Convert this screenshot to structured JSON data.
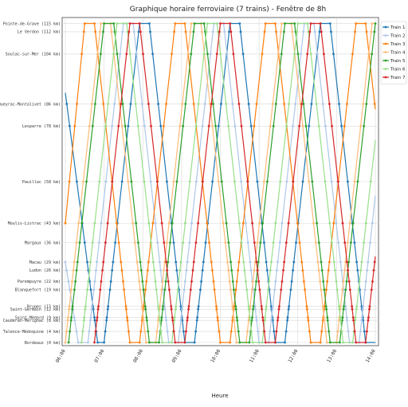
{
  "chart_data": {
    "type": "line",
    "title": "Graphique horaire ferroviaire (7 trains) - Fenêtre de 8h",
    "xlabel": "Heure",
    "ylabel": "",
    "grid": true,
    "legend_position": "top-right",
    "x_ticks": [
      "06:00",
      "07:00",
      "08:00",
      "09:00",
      "10:00",
      "11:00",
      "12:00",
      "13:00",
      "14:00"
    ],
    "ylim": [
      0,
      116
    ],
    "stations": [
      {
        "name": "Bordeaux (0 km)",
        "km": 0
      },
      {
        "name": "Talence-Médoquine (4 km)",
        "km": 4
      },
      {
        "name": "Caudéran-Mérignac (8 km)",
        "km": 8
      },
      {
        "name": "Saint-Médard (9 km)",
        "km": 9
      },
      {
        "name": "Saint-Germain (12 km)",
        "km": 12
      },
      {
        "name": "Bruges (13 km)",
        "km": 13
      },
      {
        "name": "Blanquefort (19 km)",
        "km": 19
      },
      {
        "name": "Parempuyre (22 km)",
        "km": 22
      },
      {
        "name": "Ludon (26 km)",
        "km": 26
      },
      {
        "name": "Macau (29 km)",
        "km": 29
      },
      {
        "name": "Margaux (36 km)",
        "km": 36
      },
      {
        "name": "Moulis-Listrac (43 km)",
        "km": 43
      },
      {
        "name": "Pauillac (58 km)",
        "km": 58
      },
      {
        "name": "Lesparre (78 km)",
        "km": 78
      },
      {
        "name": "Queyrac-Montalivet (86 km)",
        "km": 86
      },
      {
        "name": "Soulac-sur-Mer (104 km)",
        "km": 104
      },
      {
        "name": "Le Verdon (112 km)",
        "km": 112
      },
      {
        "name": "Pointe-de-Grave (115 km)",
        "km": 115
      }
    ],
    "series": [
      {
        "name": "Train 1",
        "color": "#1f77b4",
        "points": [
          [
            "06:00",
            90
          ],
          [
            "06:50",
            0
          ],
          [
            "07:00",
            0
          ],
          [
            "07:55",
            115
          ],
          [
            "08:10",
            115
          ],
          [
            "09:05",
            0
          ],
          [
            "09:20",
            0
          ],
          [
            "10:15",
            115
          ],
          [
            "10:30",
            115
          ],
          [
            "11:25",
            0
          ],
          [
            "11:40",
            0
          ],
          [
            "12:35",
            115
          ],
          [
            "12:50",
            115
          ],
          [
            "13:45",
            0
          ],
          [
            "14:00",
            0
          ]
        ]
      },
      {
        "name": "Train 2",
        "color": "#aec7e8",
        "points": [
          [
            "06:00",
            29
          ],
          [
            "06:20",
            0
          ],
          [
            "06:35",
            0
          ],
          [
            "07:30",
            115
          ],
          [
            "07:45",
            115
          ],
          [
            "08:40",
            0
          ],
          [
            "08:55",
            0
          ],
          [
            "09:50",
            115
          ],
          [
            "10:05",
            115
          ],
          [
            "11:00",
            0
          ],
          [
            "11:15",
            0
          ],
          [
            "12:10",
            115
          ],
          [
            "12:25",
            115
          ],
          [
            "13:20",
            0
          ],
          [
            "13:35",
            0
          ],
          [
            "14:00",
            53
          ]
        ]
      },
      {
        "name": "Train 3",
        "color": "#ff7f0e",
        "points": [
          [
            "06:00",
            43
          ],
          [
            "06:30",
            115
          ],
          [
            "06:45",
            115
          ],
          [
            "07:40",
            0
          ],
          [
            "07:55",
            0
          ],
          [
            "08:50",
            115
          ],
          [
            "09:05",
            115
          ],
          [
            "10:00",
            0
          ],
          [
            "10:15",
            0
          ],
          [
            "11:10",
            115
          ],
          [
            "11:25",
            115
          ],
          [
            "12:20",
            0
          ],
          [
            "12:35",
            0
          ],
          [
            "13:30",
            115
          ],
          [
            "13:45",
            115
          ],
          [
            "14:00",
            84
          ]
        ]
      },
      {
        "name": "Train 4",
        "color": "#ffbb78",
        "points": [
          [
            "06:00",
            0
          ],
          [
            "06:55",
            115
          ],
          [
            "07:10",
            115
          ],
          [
            "08:05",
            0
          ],
          [
            "08:20",
            0
          ],
          [
            "09:15",
            115
          ],
          [
            "09:30",
            115
          ],
          [
            "10:25",
            0
          ],
          [
            "10:40",
            0
          ],
          [
            "11:35",
            115
          ],
          [
            "11:50",
            115
          ],
          [
            "12:45",
            0
          ],
          [
            "13:00",
            0
          ],
          [
            "13:55",
            115
          ],
          [
            "14:00",
            115
          ]
        ]
      },
      {
        "name": "Train 5",
        "color": "#2ca02c",
        "points": [
          [
            "06:05",
            0
          ],
          [
            "07:00",
            115
          ],
          [
            "07:15",
            115
          ],
          [
            "08:10",
            0
          ],
          [
            "08:25",
            0
          ],
          [
            "09:20",
            115
          ],
          [
            "09:35",
            115
          ],
          [
            "10:30",
            0
          ],
          [
            "10:45",
            0
          ],
          [
            "11:40",
            115
          ],
          [
            "11:55",
            115
          ],
          [
            "12:50",
            0
          ],
          [
            "13:05",
            0
          ],
          [
            "14:00",
            115
          ]
        ]
      },
      {
        "name": "Train 6",
        "color": "#98df8a",
        "points": [
          [
            "06:25",
            0
          ],
          [
            "07:20",
            115
          ],
          [
            "07:35",
            115
          ],
          [
            "08:30",
            0
          ],
          [
            "08:45",
            0
          ],
          [
            "09:40",
            115
          ],
          [
            "09:55",
            115
          ],
          [
            "10:50",
            0
          ],
          [
            "11:05",
            0
          ],
          [
            "12:00",
            115
          ],
          [
            "12:15",
            115
          ],
          [
            "13:10",
            0
          ],
          [
            "13:25",
            0
          ],
          [
            "14:00",
            73
          ]
        ]
      },
      {
        "name": "Train 7",
        "color": "#d62728",
        "points": [
          [
            "06:45",
            0
          ],
          [
            "07:40",
            115
          ],
          [
            "07:55",
            115
          ],
          [
            "08:50",
            0
          ],
          [
            "09:05",
            0
          ],
          [
            "10:00",
            115
          ],
          [
            "10:15",
            115
          ],
          [
            "11:10",
            0
          ],
          [
            "11:25",
            0
          ],
          [
            "12:20",
            115
          ],
          [
            "12:35",
            115
          ],
          [
            "13:30",
            0
          ],
          [
            "13:45",
            0
          ],
          [
            "14:00",
            31
          ]
        ]
      }
    ]
  }
}
